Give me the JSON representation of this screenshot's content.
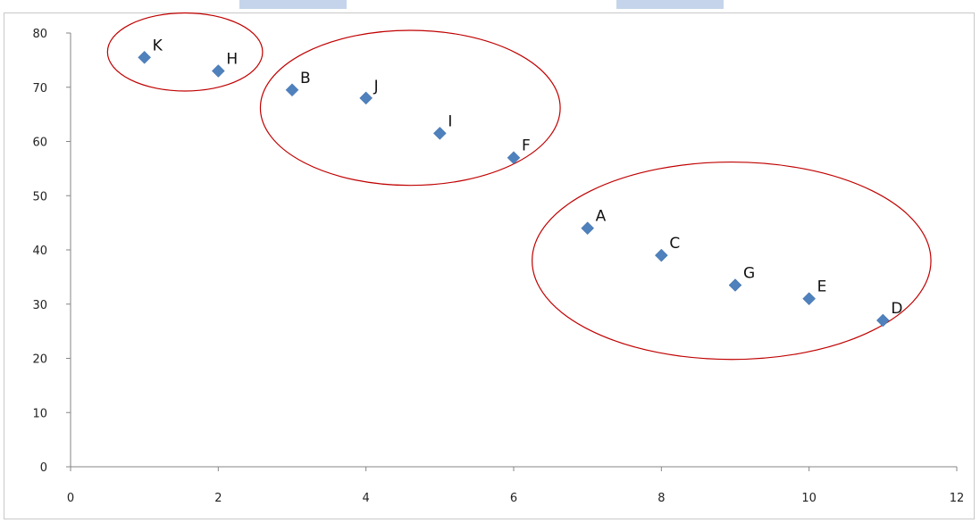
{
  "chart_data": {
    "type": "scatter",
    "title": "",
    "xlabel": "",
    "ylabel": "",
    "xlim": [
      0,
      12
    ],
    "ylim": [
      0,
      80
    ],
    "x_ticks": [
      0,
      2,
      4,
      6,
      8,
      10,
      12
    ],
    "y_ticks": [
      0,
      10,
      20,
      30,
      40,
      50,
      60,
      70,
      80
    ],
    "grid": false,
    "legend": "none",
    "marker_color": "#4f81bd",
    "cluster_outline_color": "#c00000",
    "points": [
      {
        "label": "K",
        "x": 1,
        "y": 75.5
      },
      {
        "label": "H",
        "x": 2,
        "y": 73
      },
      {
        "label": "B",
        "x": 3,
        "y": 69.5
      },
      {
        "label": "J",
        "x": 4,
        "y": 68
      },
      {
        "label": "I",
        "x": 5,
        "y": 61.5
      },
      {
        "label": "F",
        "x": 6,
        "y": 57
      },
      {
        "label": "A",
        "x": 7,
        "y": 44
      },
      {
        "label": "C",
        "x": 8,
        "y": 39
      },
      {
        "label": "G",
        "x": 9,
        "y": 33.5
      },
      {
        "label": "E",
        "x": 10,
        "y": 31
      },
      {
        "label": "D",
        "x": 11,
        "y": 27
      }
    ],
    "clusters": [
      {
        "members": [
          "K",
          "H"
        ],
        "cx": 1.55,
        "cy": 76.5,
        "rx": 1.05,
        "ry": 7.2
      },
      {
        "members": [
          "B",
          "J",
          "I",
          "F"
        ],
        "cx": 4.6,
        "cy": 66.2,
        "rx": 2.03,
        "ry": 14.3
      },
      {
        "members": [
          "A",
          "C",
          "G",
          "E",
          "D"
        ],
        "cx": 8.95,
        "cy": 38,
        "rx": 2.7,
        "ry": 18.2
      }
    ]
  }
}
